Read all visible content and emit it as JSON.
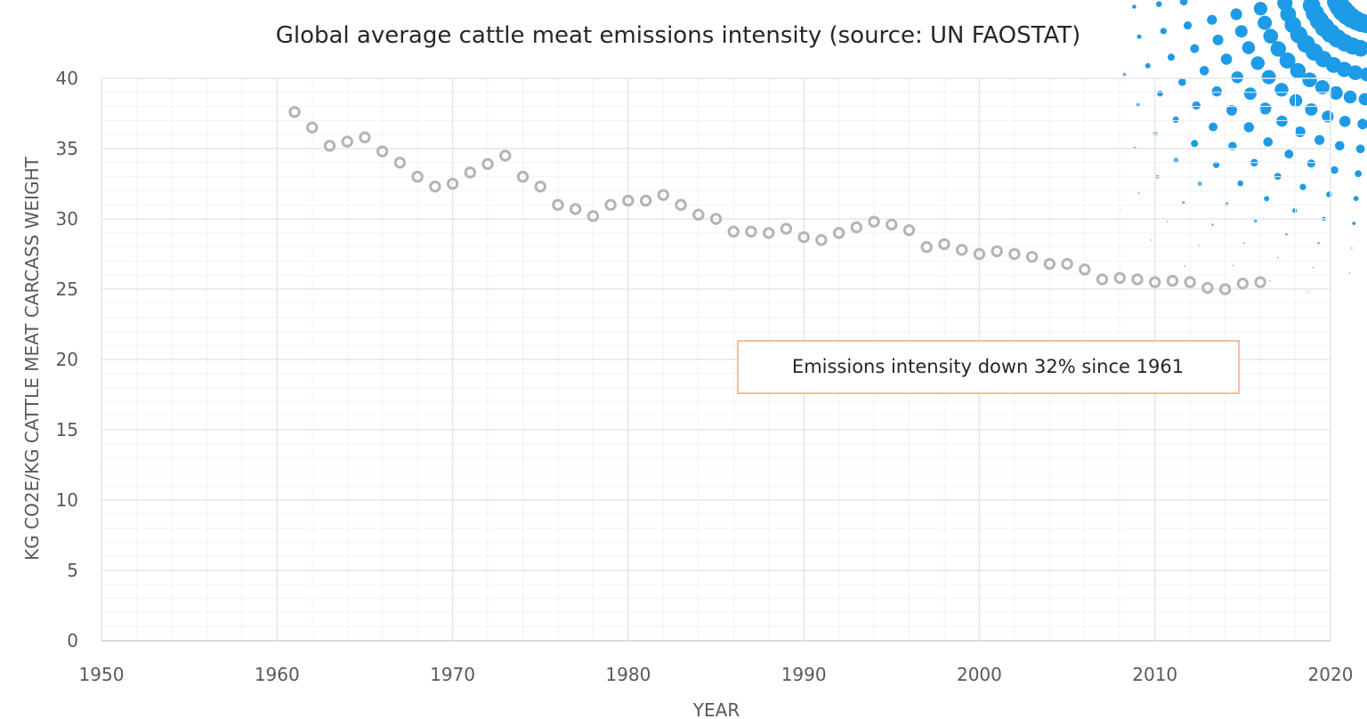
{
  "chart_data": {
    "type": "scatter",
    "title": "Global average cattle meat emissions intensity (source: UN FAOSTAT)",
    "xlabel": "YEAR",
    "ylabel": "KG CO2E/KG CATTLE MEAT CARCASS WEIGHT",
    "xlim": [
      1950,
      2020
    ],
    "ylim": [
      0,
      40
    ],
    "x_ticks": [
      1950,
      1960,
      1970,
      1980,
      1990,
      2000,
      2010,
      2020
    ],
    "y_ticks": [
      0,
      5,
      10,
      15,
      20,
      25,
      30,
      35,
      40
    ],
    "grid": true,
    "legend": "none",
    "marker_color": "#b4b4b4",
    "grid_color": "#e6e6e6",
    "annotation": {
      "text": "Emissions intensity down 32% since 1961",
      "border_color": "#f0a878"
    },
    "series": [
      {
        "x": [
          1961,
          1962,
          1963,
          1964,
          1965,
          1966,
          1967,
          1968,
          1969,
          1970,
          1971,
          1972,
          1973,
          1974,
          1975,
          1976,
          1977,
          1978,
          1979,
          1980,
          1981,
          1982,
          1983,
          1984,
          1985,
          1986,
          1987,
          1988,
          1989,
          1990,
          1991,
          1992,
          1993,
          1994,
          1995,
          1996,
          1997,
          1998,
          1999,
          2000,
          2001,
          2002,
          2003,
          2004,
          2005,
          2006,
          2007,
          2008,
          2009,
          2010,
          2011,
          2012,
          2013,
          2014,
          2015,
          2016
        ],
        "y": [
          37.6,
          36.5,
          35.2,
          35.5,
          35.8,
          34.8,
          34.0,
          33.0,
          32.3,
          32.5,
          33.3,
          33.9,
          34.5,
          33.0,
          32.3,
          31.0,
          30.7,
          30.2,
          31.0,
          31.3,
          31.3,
          31.7,
          31.0,
          30.3,
          30.0,
          29.1,
          29.1,
          29.0,
          29.3,
          28.7,
          28.5,
          29.0,
          29.4,
          29.8,
          29.6,
          29.2,
          28.0,
          28.2,
          27.8,
          27.5,
          27.7,
          27.5,
          27.3,
          26.8,
          26.8,
          26.4,
          25.7,
          25.8,
          25.7,
          25.5,
          25.6,
          25.5,
          25.1,
          25.0,
          25.4,
          25.5
        ]
      }
    ]
  }
}
